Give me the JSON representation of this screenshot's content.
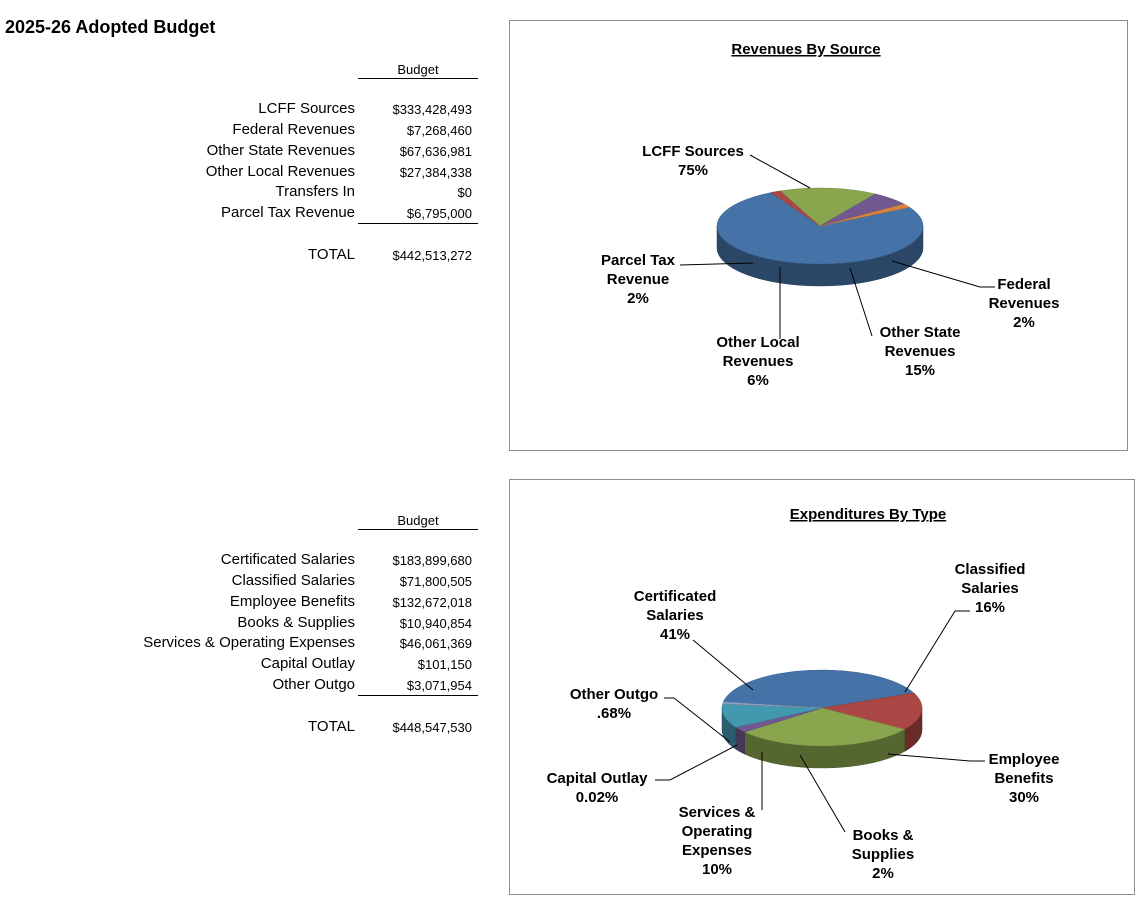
{
  "page": {
    "title": "2025-26 Adopted Budget"
  },
  "revenues_table": {
    "header": "Budget",
    "rows": [
      {
        "label": "LCFF Sources",
        "value": "$333,428,493"
      },
      {
        "label": "Federal Revenues",
        "value": "$7,268,460"
      },
      {
        "label": "Other State Revenues",
        "value": "$67,636,981"
      },
      {
        "label": "Other Local Revenues",
        "value": "$27,384,338"
      },
      {
        "label": "Transfers In",
        "value": "$0"
      },
      {
        "label": "Parcel Tax Revenue",
        "value": "$6,795,000"
      }
    ],
    "total_label": "TOTAL",
    "total_value": "$442,513,272"
  },
  "expenditures_table": {
    "header": "Budget",
    "rows": [
      {
        "label": "Certificated Salaries",
        "value": "$183,899,680"
      },
      {
        "label": "Classified Salaries",
        "value": "$71,800,505"
      },
      {
        "label": "Employee Benefits",
        "value": "$132,672,018"
      },
      {
        "label": "Books & Supplies",
        "value": "$10,940,854"
      },
      {
        "label": "Services & Operating Expenses",
        "value": "$46,061,369"
      },
      {
        "label": "Capital Outlay",
        "value": "$101,150"
      },
      {
        "label": "Other Outgo",
        "value": "$3,071,954"
      }
    ],
    "total_label": "TOTAL",
    "total_value": "$448,547,530"
  },
  "chart_data": [
    {
      "type": "pie",
      "title": "Revenues By Source",
      "slices": [
        {
          "label": "LCFF Sources",
          "percent_label": "75%",
          "value": 333428493,
          "color": "#4572a7"
        },
        {
          "label": "Federal Revenues",
          "percent_label": "2%",
          "value": 7268460,
          "color": "#aa4643"
        },
        {
          "label": "Other State Revenues",
          "percent_label": "15%",
          "value": 67636981,
          "color": "#89a54e"
        },
        {
          "label": "Other Local Revenues",
          "percent_label": "6%",
          "value": 27384338,
          "color": "#71588f"
        },
        {
          "label": "Transfers In",
          "percent_label": "",
          "value": 0,
          "color": "#4198af"
        },
        {
          "label": "Parcel Tax Revenue",
          "percent_label": "2%",
          "value": 6795000,
          "color": "#db843d"
        }
      ]
    },
    {
      "type": "pie",
      "title": "Expenditures By Type",
      "slices": [
        {
          "label": "Certificated Salaries",
          "percent_label": "41%",
          "value": 183899680,
          "color": "#4572a7"
        },
        {
          "label": "Classified Salaries",
          "percent_label": "16%",
          "value": 71800505,
          "color": "#aa4643"
        },
        {
          "label": "Employee Benefits",
          "percent_label": "30%",
          "value": 132672018,
          "color": "#89a54e"
        },
        {
          "label": "Books & Supplies",
          "percent_label": "2%",
          "value": 10940854,
          "color": "#71588f"
        },
        {
          "label": "Services & Operating Expenses",
          "percent_label": "10%",
          "value": 46061369,
          "color": "#4198af"
        },
        {
          "label": "Capital Outlay",
          "percent_label": "0.02%",
          "value": 101150,
          "color": "#db843d"
        },
        {
          "label": "Other Outgo",
          "percent_label": ".68%",
          "value": 3071954,
          "color": "#93a9cf"
        }
      ]
    }
  ]
}
